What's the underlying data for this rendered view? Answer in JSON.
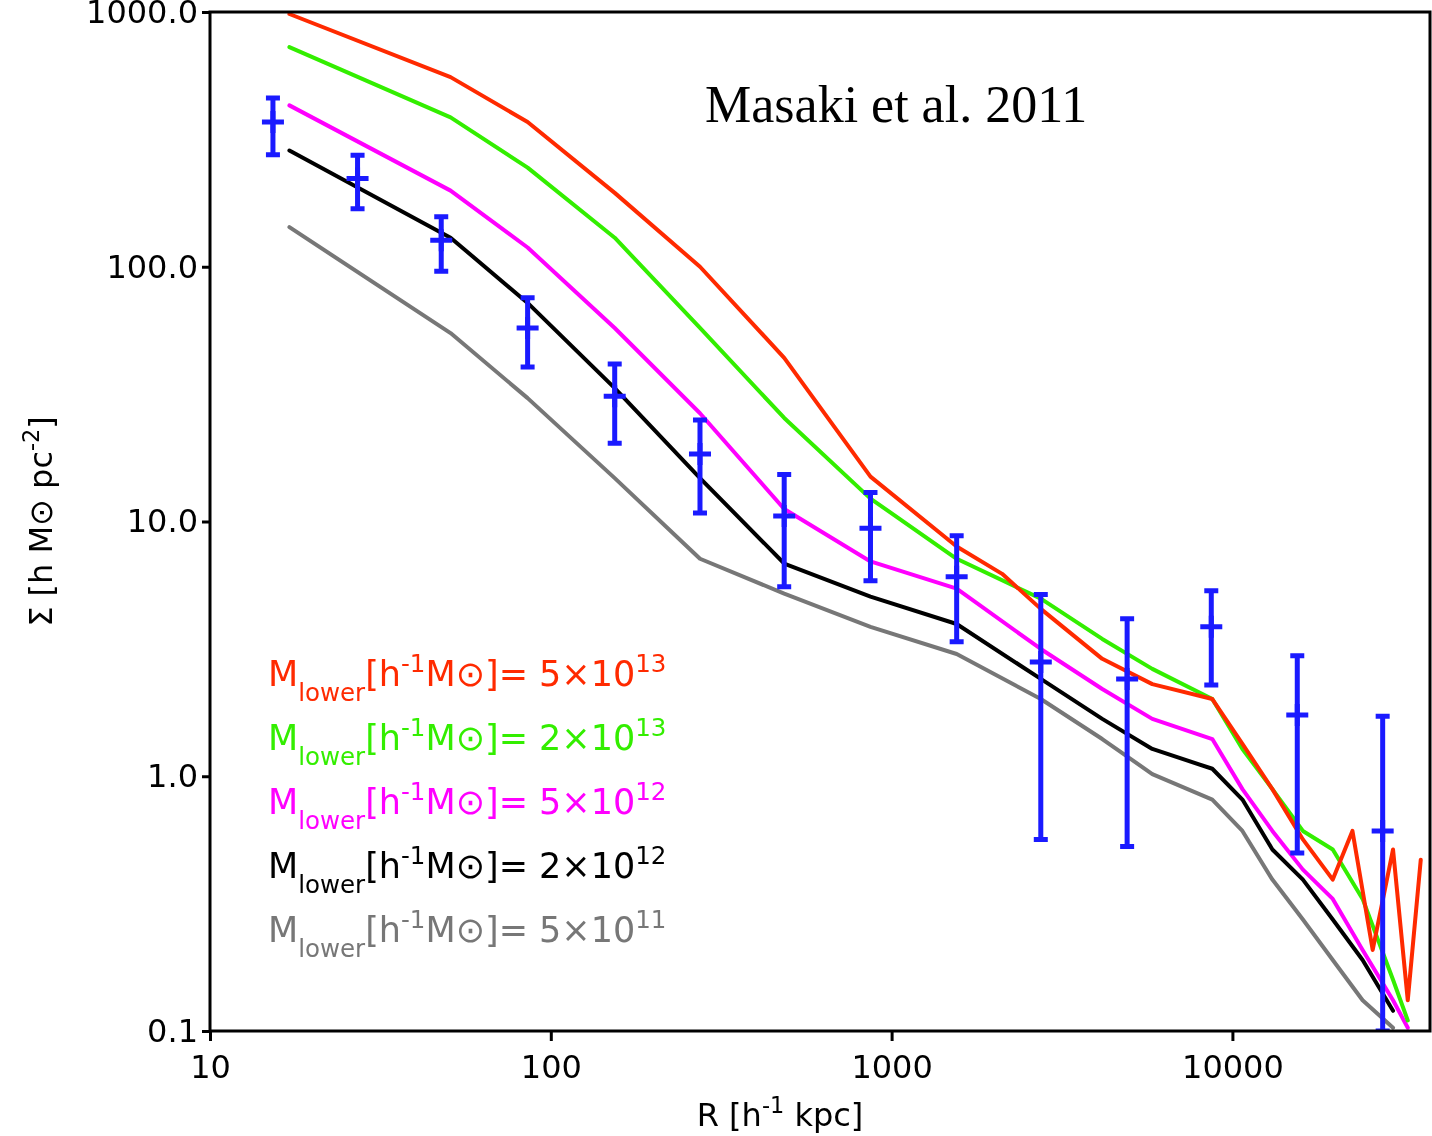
{
  "chart_data": {
    "type": "line",
    "xlabel": "R [h$^{-1}$ kpc]",
    "ylabel": "Σ [h M⊙ pc$^{-2}$]",
    "annotations": [
      "Masaki et al. 2011"
    ],
    "log": "xy",
    "legend": "bottom left",
    "xlim": [
      10,
      38000
    ],
    "xticks": [
      10,
      100,
      1000,
      10000
    ],
    "ylim": [
      0.1,
      1000
    ],
    "yticks": [
      {
        "value": 0.1,
        "label": "0.1"
      },
      {
        "value": 1,
        "label": "1.0"
      },
      {
        "value": 10,
        "label": "10.0"
      },
      {
        "value": 100,
        "label": "100.0"
      },
      {
        "value": 1000,
        "label": "1000.0"
      }
    ],
    "series": [
      {
        "name": "M$_{lower}$[h$^{-1}$M⊙]= 5×10$^{13}$",
        "color": "#ff2a00",
        "x": [
          17.1,
          50.8,
          85.5,
          154,
          274,
          484,
          867,
          1552,
          2110,
          2740,
          4150,
          5820,
          8730,
          10700,
          13100,
          16100,
          19700,
          22500,
          25800,
          29600,
          32700,
          35700
        ],
        "values": [
          982,
          555,
          370,
          195,
          100,
          43.9,
          15.0,
          7.98,
          6.23,
          4.54,
          2.89,
          2.3,
          2.01,
          1.34,
          0.89,
          0.565,
          0.393,
          0.61,
          0.208,
          0.516,
          0.132,
          0.47
        ]
      },
      {
        "name": "M$_{lower}$[h$^{-1}$M⊙]= 2×10$^{13}$",
        "color": "#33ee00",
        "x": [
          17.1,
          50.8,
          85.5,
          154,
          274,
          484,
          867,
          1552,
          2740,
          4150,
          5820,
          8730,
          10700,
          13100,
          16100,
          19700,
          24100,
          29600,
          32700
        ],
        "values": [
          728,
          386,
          245,
          130,
          57.5,
          25.5,
          12.3,
          7.14,
          4.98,
          3.46,
          2.64,
          2.01,
          1.28,
          0.89,
          0.61,
          0.516,
          0.33,
          0.159,
          0.11
        ]
      },
      {
        "name": "M$_{lower}$[h$^{-1}$M⊙]= 5×10$^{12}$",
        "color": "#ff00ff",
        "x": [
          17.1,
          50.8,
          85.5,
          154,
          274,
          484,
          867,
          1552,
          2740,
          4150,
          5820,
          8730,
          10700,
          13100,
          16100,
          19700,
          24100,
          29600,
          32700
        ],
        "values": [
          430,
          199,
          119,
          57.5,
          26.6,
          11.2,
          6.97,
          5.45,
          3.16,
          2.2,
          1.68,
          1.4,
          0.89,
          0.61,
          0.43,
          0.33,
          0.208,
          0.132,
          0.103
        ]
      },
      {
        "name": "M$_{lower}$[h$^{-1}$M⊙]= 2×10$^{12}$",
        "color": "#000000",
        "x": [
          17.1,
          50.8,
          85.5,
          154,
          274,
          484,
          867,
          1552,
          2740,
          4150,
          5820,
          8730,
          10700,
          13100,
          16100,
          19700,
          24100,
          29600
        ],
        "values": [
          286,
          130,
          72.1,
          33.4,
          14.8,
          6.84,
          5.07,
          3.96,
          2.41,
          1.68,
          1.28,
          1.07,
          0.81,
          0.516,
          0.393,
          0.274,
          0.19,
          0.12
        ]
      },
      {
        "name": "M$_{lower}$[h$^{-1}$M⊙]= 5×10$^{11}$",
        "color": "#777777",
        "x": [
          17.1,
          50.8,
          85.5,
          154,
          274,
          484,
          867,
          1552,
          2740,
          4150,
          5820,
          8730,
          10700,
          13100,
          16100,
          19700,
          24100,
          29600
        ],
        "values": [
          143,
          54.9,
          30.5,
          14.8,
          7.14,
          5.21,
          3.86,
          3.02,
          2.01,
          1.4,
          1.02,
          0.81,
          0.61,
          0.393,
          0.274,
          0.19,
          0.132,
          0.103
        ]
      },
      {
        "type": "scatter",
        "marker": "cross",
        "color": "#1a1aff",
        "x": [
          15.3,
          27.1,
          47.7,
          85.5,
          154,
          274,
          484,
          867,
          1552,
          2740,
          4910,
          8670,
          15500,
          27600
        ],
        "values": [
          370,
          222,
          127,
          57.5,
          31.0,
          18.4,
          10.5,
          9.4,
          6.07,
          2.81,
          2.41,
          3.86,
          1.74,
          0.61
        ],
        "errors": [
          [
            275,
            460
          ],
          [
            169,
            274
          ],
          [
            96,
            157
          ],
          [
            40.4,
            75.5
          ],
          [
            20.3,
            41.5
          ],
          [
            10.8,
            25.0
          ],
          [
            5.55,
            15.3
          ],
          [
            5.86,
            13.0
          ],
          [
            3.37,
            8.8
          ],
          [
            0.565,
            5.17
          ],
          [
            0.53,
            4.15
          ],
          [
            2.28,
            5.35
          ],
          [
            0.5,
            2.97
          ],
          [
            0.1,
            1.72
          ]
        ]
      }
    ]
  }
}
